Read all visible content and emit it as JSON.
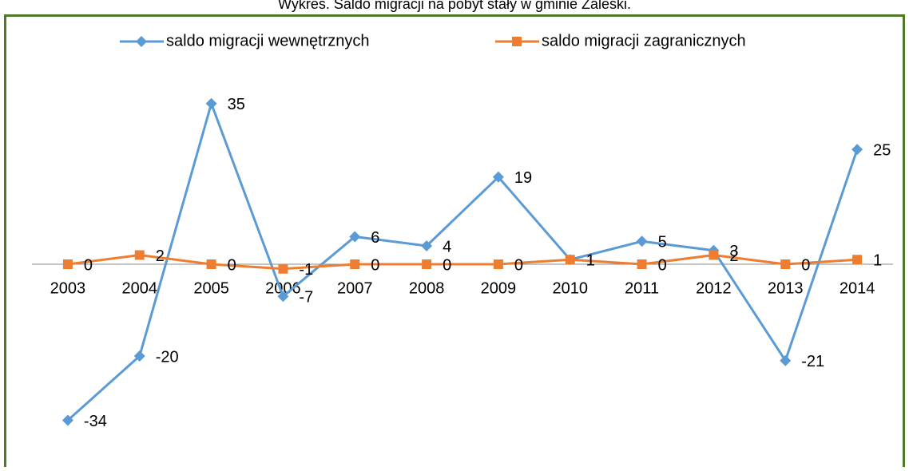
{
  "chart_data": {
    "type": "line",
    "title": "Wykres. Saldo migracji na pobyt stały w gminie Zaleski.",
    "categories": [
      "2003",
      "2004",
      "2005",
      "2006",
      "2007",
      "2008",
      "2009",
      "2010",
      "2011",
      "2012",
      "2013",
      "2014"
    ],
    "series": [
      {
        "name": "saldo migracji wewnętrznych",
        "color": "#5b9bd5",
        "marker": "diamond",
        "values": [
          -34,
          -20,
          35,
          -7,
          6,
          4,
          19,
          1,
          5,
          3,
          -21,
          25
        ]
      },
      {
        "name": "saldo migracji zagranicznych",
        "color": "#ed7d31",
        "marker": "square",
        "values": [
          0,
          2,
          0,
          -1,
          0,
          0,
          0,
          1,
          0,
          2,
          0,
          1
        ]
      }
    ],
    "ylim": [
      -40,
      40
    ],
    "legend": "top"
  }
}
